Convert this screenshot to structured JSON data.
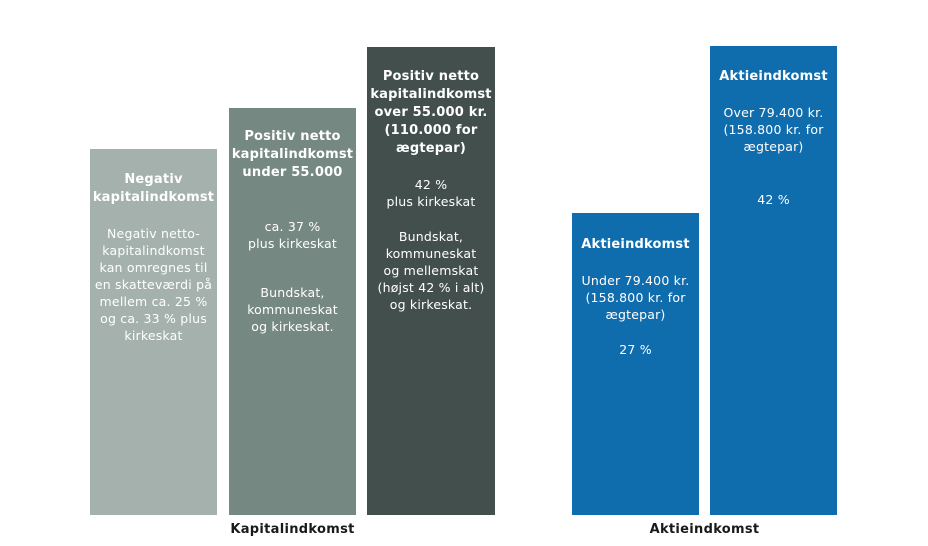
{
  "chart_data": {
    "type": "bar",
    "title": "",
    "groups": [
      {
        "label": "Kapitalindkomst",
        "bars": [
          {
            "title": "Negativ\nkapitalindkomst",
            "rate_text": "Negativ netto-\nkapitalindkomst\nkan omregnes til\nen skatteværdi på\nmellem ca. 25 %\nog ca. 33 % plus\nkirkeskat",
            "note": "",
            "color": "#a4b1ac",
            "relative_height": 366
          },
          {
            "title": "Positiv netto\nkapitalindkomst\nunder 55.000",
            "rate_text": "ca. 37 %\nplus kirkeskat",
            "note": "Bundskat,\nkommuneskat\nog kirkeskat.",
            "color": "#768882",
            "relative_height": 407
          },
          {
            "title": "Positiv netto\nkapitalindkomst\nover 55.000 kr.\n(110.000 for\nægtepar)",
            "rate_text": "42 %\nplus kirkeskat",
            "note": "Bundskat,\nkommuneskat\nog mellemskat\n(højst 42 % i alt)\nog kirkeskat.",
            "color": "#434f4d",
            "relative_height": 468
          }
        ]
      },
      {
        "label": "Aktieindkomst",
        "bars": [
          {
            "title": "Aktieindkomst",
            "threshold": "Under 79.400 kr.\n(158.800 kr. for\nægtepar)",
            "rate_text": "27 %",
            "color": "#0f6cad",
            "relative_height": 302
          },
          {
            "title": "Aktieindkomst",
            "threshold": "Over 79.400 kr.\n(158.800 kr. for\nægtepar)",
            "rate_text": "42 %",
            "color": "#0f6cad",
            "relative_height": 469
          }
        ]
      }
    ],
    "categories": [
      "Negativ kapitalindkomst",
      "Positiv netto kapitalindkomst under 55.000",
      "Positiv netto kapitalindkomst over 55.000 kr.",
      "Aktieindkomst under 79.400 kr.",
      "Aktieindkomst over 79.400 kr."
    ],
    "values": [
      25,
      37,
      42,
      27,
      42
    ],
    "xlabel": "",
    "ylabel": ""
  }
}
